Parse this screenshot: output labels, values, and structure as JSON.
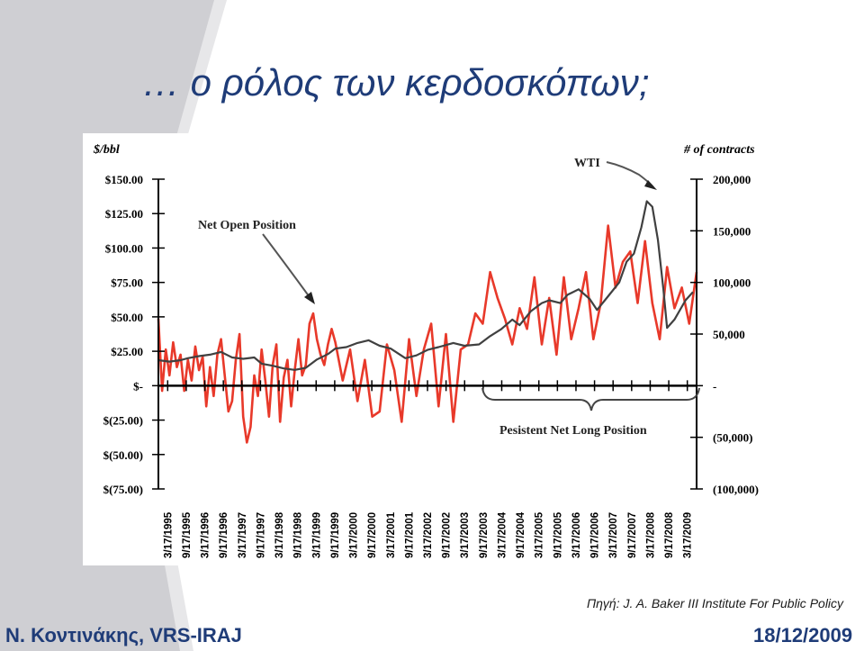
{
  "slide": {
    "title": "… ο ρόλος των κερδοσκόπων;",
    "source": "Πηγή: J. A. Baker III Institute For Public Policy",
    "author": "N. Κοντινάκης, VRS-IRAJ",
    "date": "18/12/2009"
  },
  "chart_data": {
    "type": "line",
    "left_axis": {
      "unit_label": "$/bbl",
      "range": [
        -75,
        150
      ],
      "ticks": [
        150,
        125,
        100,
        75,
        50,
        25,
        0,
        -25,
        -50,
        -75
      ],
      "tick_labels": [
        "$150.00",
        "$125.00",
        "$100.00",
        "$75.00",
        "$50.00",
        "$25.00",
        "$-",
        "$(25.00)",
        "$(50.00)",
        "$(75.00)"
      ]
    },
    "right_axis": {
      "unit_label": "# of contracts",
      "range": [
        -100000,
        200000
      ],
      "ticks": [
        200000,
        150000,
        100000,
        50000,
        0,
        -50000,
        -100000
      ],
      "tick_labels": [
        "200,000",
        "150,000",
        "100,000",
        "50,000",
        "-",
        "(50,000)",
        "(100,000)"
      ]
    },
    "x_axis": {
      "range": [
        "1995-03-17",
        "2009-09-17"
      ],
      "tick_labels": [
        "3/17/1995",
        "9/17/1995",
        "3/17/1996",
        "9/17/1996",
        "3/17/1997",
        "9/17/1997",
        "3/17/1998",
        "9/17/1998",
        "3/17/1999",
        "9/17/1999",
        "3/17/2000",
        "9/17/2000",
        "3/17/2001",
        "9/17/2001",
        "3/17/2002",
        "9/17/2002",
        "3/17/2003",
        "9/17/2003",
        "3/17/2004",
        "9/17/2004",
        "3/17/2005",
        "9/17/2005",
        "3/17/2006",
        "9/17/2006",
        "3/17/2007",
        "9/17/2007",
        "3/17/2008",
        "9/17/2008",
        "3/17/2009"
      ]
    },
    "grid": false,
    "series": [
      {
        "name": "WTI",
        "axis": "left",
        "color": "#404040",
        "x": [
          1995.2,
          1995.5,
          1995.8,
          1996.0,
          1996.3,
          1996.6,
          1996.9,
          1997.2,
          1997.5,
          1997.8,
          1998.0,
          1998.3,
          1998.6,
          1998.9,
          1999.2,
          1999.5,
          1999.8,
          2000.0,
          2000.3,
          2000.6,
          2000.9,
          2001.2,
          2001.5,
          2001.9,
          2002.2,
          2002.5,
          2002.8,
          2003.2,
          2003.5,
          2003.9,
          2004.2,
          2004.5,
          2004.8,
          2005.0,
          2005.3,
          2005.6,
          2005.8,
          2006.1,
          2006.3,
          2006.6,
          2006.9,
          2007.1,
          2007.4,
          2007.7,
          2007.9,
          2008.1,
          2008.3,
          2008.45,
          2008.6,
          2008.75,
          2008.9,
          2009.0,
          2009.2,
          2009.5,
          2009.7
        ],
        "y": [
          18.5,
          17.5,
          18.5,
          20,
          21.5,
          22.5,
          24.5,
          20.5,
          19.5,
          20.5,
          16,
          14.5,
          12.5,
          11.5,
          13,
          19,
          23,
          27,
          28,
          31,
          33,
          29,
          27,
          20,
          22,
          26,
          28,
          31,
          29,
          30,
          36,
          41,
          48,
          44,
          54,
          60,
          62,
          60,
          66,
          70,
          63,
          55,
          65,
          75,
          90,
          96,
          115,
          134,
          130,
          106,
          70,
          42,
          48,
          62,
          68
        ]
      },
      {
        "name": "Net Open Position",
        "axis": "right",
        "color": "#e8392a",
        "x": [
          1995.2,
          1995.3,
          1995.4,
          1995.5,
          1995.6,
          1995.7,
          1995.8,
          1995.9,
          1996.0,
          1996.1,
          1996.2,
          1996.3,
          1996.4,
          1996.5,
          1996.6,
          1996.7,
          1996.8,
          1996.9,
          1997.0,
          1997.1,
          1997.2,
          1997.3,
          1997.4,
          1997.5,
          1997.6,
          1997.7,
          1997.8,
          1997.9,
          1998.0,
          1998.1,
          1998.2,
          1998.3,
          1998.4,
          1998.5,
          1998.6,
          1998.7,
          1998.8,
          1998.9,
          1999.0,
          1999.1,
          1999.2,
          1999.3,
          1999.4,
          1999.5,
          1999.6,
          1999.7,
          1999.8,
          1999.9,
          2000.0,
          2000.2,
          2000.4,
          2000.6,
          2000.8,
          2001.0,
          2001.2,
          2001.4,
          2001.6,
          2001.8,
          2002.0,
          2002.2,
          2002.4,
          2002.6,
          2002.8,
          2003.0,
          2003.2,
          2003.4,
          2003.6,
          2003.8,
          2004.0,
          2004.2,
          2004.4,
          2004.6,
          2004.8,
          2005.0,
          2005.2,
          2005.4,
          2005.6,
          2005.8,
          2006.0,
          2006.2,
          2006.4,
          2006.6,
          2006.8,
          2007.0,
          2007.2,
          2007.4,
          2007.6,
          2007.8,
          2008.0,
          2008.2,
          2008.4,
          2008.6,
          2008.8,
          2009.0,
          2009.2,
          2009.4,
          2009.6,
          2009.8
        ],
        "y": [
          65000,
          -5000,
          35000,
          10000,
          42000,
          18000,
          30000,
          -5000,
          25000,
          5000,
          38000,
          15000,
          28000,
          -20000,
          18000,
          -10000,
          30000,
          45000,
          10000,
          -25000,
          -15000,
          25000,
          50000,
          -30000,
          -55000,
          -40000,
          10000,
          -10000,
          35000,
          5000,
          -30000,
          20000,
          40000,
          -35000,
          8000,
          25000,
          -20000,
          15000,
          45000,
          10000,
          20000,
          60000,
          70000,
          45000,
          30000,
          20000,
          40000,
          55000,
          42000,
          5000,
          35000,
          -15000,
          25000,
          -30000,
          -25000,
          40000,
          15000,
          -35000,
          45000,
          -10000,
          35000,
          60000,
          -20000,
          50000,
          -35000,
          35000,
          40000,
          70000,
          60000,
          110000,
          85000,
          65000,
          40000,
          75000,
          55000,
          105000,
          40000,
          85000,
          30000,
          105000,
          45000,
          75000,
          110000,
          45000,
          80000,
          155000,
          95000,
          120000,
          130000,
          80000,
          140000,
          80000,
          45000,
          115000,
          75000,
          95000,
          60000,
          110000
        ]
      }
    ],
    "annotations": [
      {
        "text": "WTI",
        "points_to": "WTI"
      },
      {
        "text": "Net Open Position",
        "points_to": "Net Open Position"
      },
      {
        "text": "Pesistent Net Long Position",
        "spans": [
          "3/17/2004",
          "3/17/2009"
        ]
      }
    ]
  }
}
